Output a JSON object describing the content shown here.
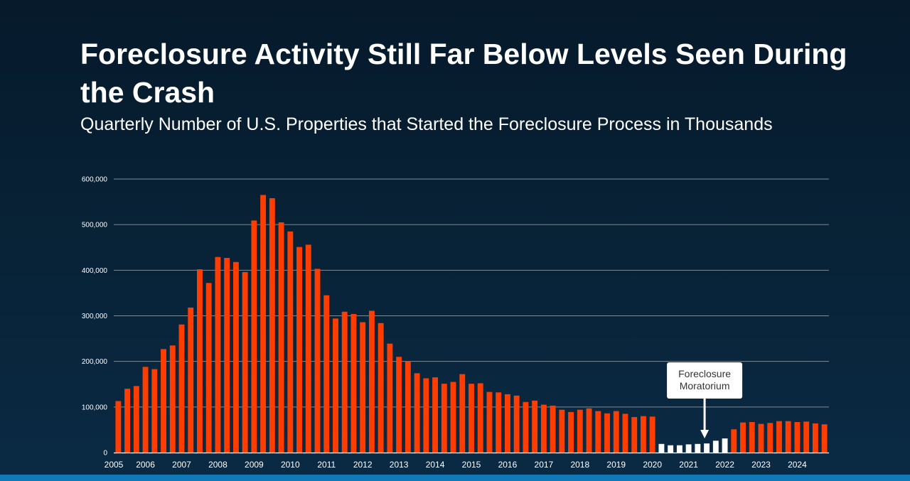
{
  "title": "Foreclosure Activity Still Far Below Levels Seen During the Crash",
  "subtitle": "Quarterly Number of U.S. Properties that Started the Foreclosure Process in Thousands",
  "colors": {
    "bar": "#ff3d00",
    "moratorium_bar": "#ffffff",
    "gridline": "#7f8c99",
    "axis_text": "#ffffff"
  },
  "chart_data": {
    "type": "bar",
    "title": "Foreclosure Activity Still Far Below Levels Seen During the Crash",
    "subtitle": "Quarterly Number of U.S. Properties that Started the Foreclosure Process in Thousands",
    "xlabel": "",
    "ylabel": "",
    "ylim": [
      0,
      600000
    ],
    "y_ticks": [
      0,
      100000,
      200000,
      300000,
      400000,
      500000,
      600000
    ],
    "y_tick_labels": [
      "0",
      "100,000",
      "200,000",
      "300,000",
      "400,000",
      "500,000",
      "600,000"
    ],
    "x_tick_labels": [
      "2005",
      "2006",
      "2007",
      "2008",
      "2009",
      "2010",
      "2011",
      "2012",
      "2013",
      "2014",
      "2015",
      "2016",
      "2017",
      "2018",
      "2019",
      "2020",
      "2021",
      "2022",
      "2023",
      "2024"
    ],
    "grid": true,
    "categories": [
      "2005 Q1",
      "2005 Q2",
      "2005 Q3",
      "2005 Q4",
      "2006 Q1",
      "2006 Q2",
      "2006 Q3",
      "2006 Q4",
      "2007 Q1",
      "2007 Q2",
      "2007 Q3",
      "2007 Q4",
      "2008 Q1",
      "2008 Q2",
      "2008 Q3",
      "2008 Q4",
      "2009 Q1",
      "2009 Q2",
      "2009 Q3",
      "2009 Q4",
      "2010 Q1",
      "2010 Q2",
      "2010 Q3",
      "2010 Q4",
      "2011 Q1",
      "2011 Q2",
      "2011 Q3",
      "2011 Q4",
      "2012 Q1",
      "2012 Q2",
      "2012 Q3",
      "2012 Q4",
      "2013 Q1",
      "2013 Q2",
      "2013 Q3",
      "2013 Q4",
      "2014 Q1",
      "2014 Q2",
      "2014 Q3",
      "2014 Q4",
      "2015 Q1",
      "2015 Q2",
      "2015 Q3",
      "2015 Q4",
      "2016 Q1",
      "2016 Q2",
      "2016 Q3",
      "2016 Q4",
      "2017 Q1",
      "2017 Q2",
      "2017 Q3",
      "2017 Q4",
      "2018 Q1",
      "2018 Q2",
      "2018 Q3",
      "2018 Q4",
      "2019 Q1",
      "2019 Q2",
      "2019 Q3",
      "2019 Q4",
      "2020 Q1",
      "2020 Q2",
      "2020 Q3",
      "2020 Q4",
      "2021 Q1",
      "2021 Q2",
      "2021 Q3",
      "2021 Q4",
      "2022 Q1",
      "2022 Q2",
      "2022 Q3",
      "2022 Q4",
      "2023 Q1",
      "2023 Q2",
      "2023 Q3",
      "2023 Q4",
      "2024 Q1",
      "2024 Q2",
      "2024 Q3"
    ],
    "values": [
      113000,
      140000,
      146000,
      188000,
      183000,
      227000,
      235000,
      281000,
      318000,
      402000,
      372000,
      429000,
      427000,
      418000,
      396000,
      509000,
      565000,
      558000,
      505000,
      485000,
      451000,
      456000,
      403000,
      345000,
      294000,
      309000,
      304000,
      286000,
      311000,
      284000,
      239000,
      210000,
      200000,
      174000,
      163000,
      165000,
      151000,
      155000,
      172000,
      151000,
      152000,
      133000,
      132000,
      128000,
      125000,
      111000,
      114000,
      105000,
      103000,
      94000,
      89000,
      94000,
      97000,
      91000,
      86000,
      91000,
      85000,
      78000,
      80000,
      79000,
      19000,
      16000,
      16000,
      18000,
      19000,
      20000,
      26000,
      31000,
      51000,
      66000,
      67000,
      63000,
      65000,
      69000,
      69000,
      67000,
      68000,
      64000,
      62000
    ],
    "highlighted_range": {
      "label": "Foreclosure Moratorium",
      "start_index": 60,
      "end_index": 67
    },
    "annotations": [
      {
        "text_lines": [
          "Foreclosure",
          "Moratorium"
        ],
        "points_to_index": 65,
        "style": "white box with downward arrow"
      }
    ]
  }
}
